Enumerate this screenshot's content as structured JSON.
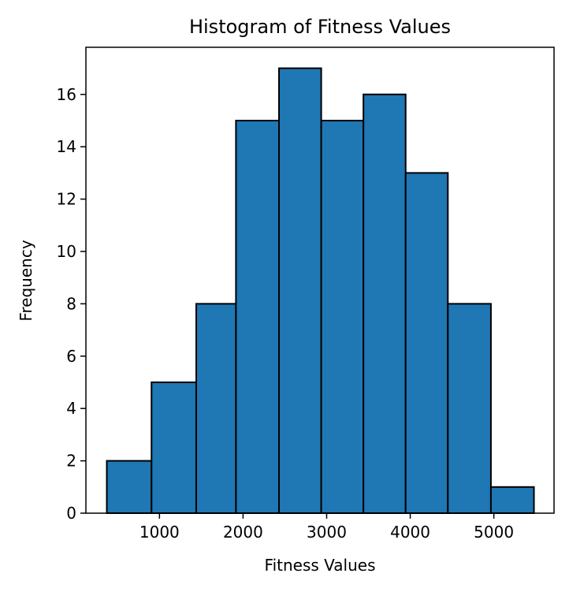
{
  "chart_data": {
    "type": "bar",
    "title": "Histogram of Fitness Values",
    "xlabel": "Fitness Values",
    "ylabel": "Frequency",
    "bins": [
      {
        "start": 370,
        "end": 905,
        "count": 2
      },
      {
        "start": 905,
        "end": 1440,
        "count": 5
      },
      {
        "start": 1440,
        "end": 1915,
        "count": 8
      },
      {
        "start": 1915,
        "end": 2430,
        "count": 15
      },
      {
        "start": 2430,
        "end": 2935,
        "count": 17
      },
      {
        "start": 2935,
        "end": 3440,
        "count": 15
      },
      {
        "start": 3440,
        "end": 3945,
        "count": 16
      },
      {
        "start": 3945,
        "end": 4450,
        "count": 13
      },
      {
        "start": 4450,
        "end": 4965,
        "count": 8
      },
      {
        "start": 4965,
        "end": 5480,
        "count": 1
      }
    ],
    "xlim": [
      120,
      5720
    ],
    "ylim": [
      0,
      17.8
    ],
    "xticks": [
      1000,
      2000,
      3000,
      4000,
      5000
    ],
    "yticks": [
      0,
      2,
      4,
      6,
      8,
      10,
      12,
      14,
      16
    ],
    "bar_color": "#1f77b4",
    "edge_color": "#000000",
    "grid": false,
    "legend": "none"
  }
}
